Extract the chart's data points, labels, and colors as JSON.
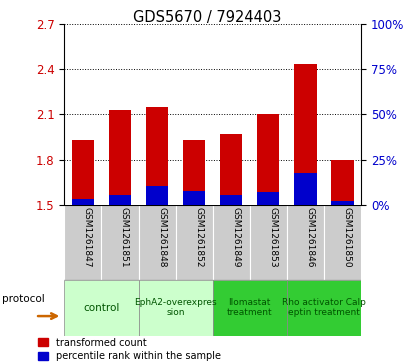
{
  "title": "GDS5670 / 7924403",
  "samples": [
    "GSM1261847",
    "GSM1261851",
    "GSM1261848",
    "GSM1261852",
    "GSM1261849",
    "GSM1261853",
    "GSM1261846",
    "GSM1261850"
  ],
  "transformed_count": [
    1.93,
    2.13,
    2.15,
    1.93,
    1.97,
    2.1,
    2.43,
    1.8
  ],
  "percentile_rank": [
    3.5,
    5.5,
    10.5,
    8.0,
    5.5,
    7.0,
    17.5,
    2.0
  ],
  "ylim_left": [
    1.5,
    2.7
  ],
  "ylim_right": [
    0,
    100
  ],
  "yticks_left": [
    1.5,
    1.8,
    2.1,
    2.4,
    2.7
  ],
  "yticks_right": [
    0,
    25,
    50,
    75,
    100
  ],
  "bar_color_red": "#cc0000",
  "bar_color_blue": "#0000cc",
  "protocols": [
    {
      "label": "control",
      "samples": [
        0,
        1
      ],
      "color": "#ccffcc"
    },
    {
      "label": "EphA2-overexpres\nsion",
      "samples": [
        2,
        3
      ],
      "color": "#ccffcc"
    },
    {
      "label": "Ilomastat\ntreatment",
      "samples": [
        4,
        5
      ],
      "color": "#33cc33"
    },
    {
      "label": "Rho activator Calp\neptin treatment",
      "samples": [
        6,
        7
      ],
      "color": "#33cc33"
    }
  ],
  "color_left": "#cc0000",
  "color_right": "#0000cc",
  "protocol_arrow_color": "#cc6600",
  "sample_bg": "#cccccc",
  "legend_red_label": "transformed count",
  "legend_blue_label": "percentile rank within the sample"
}
